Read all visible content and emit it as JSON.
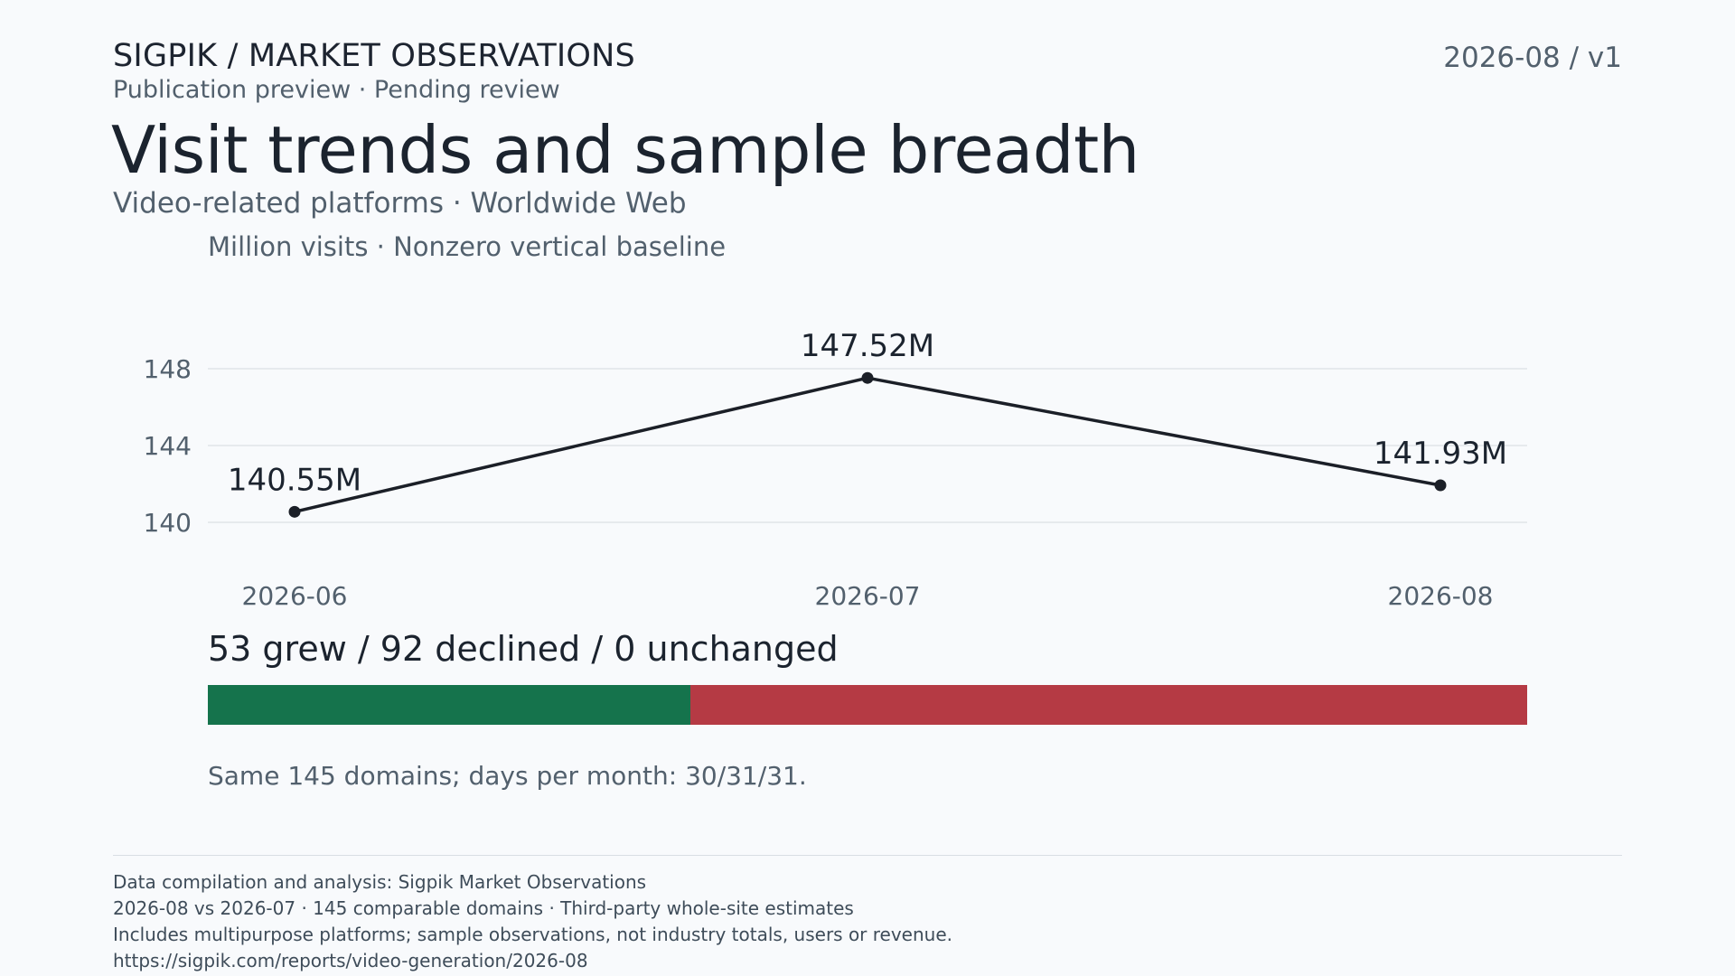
{
  "header": {
    "brand": "SIGPIK / MARKET OBSERVATIONS",
    "status": "Publication preview · Pending review",
    "edition": "2026-08 / v1"
  },
  "title": "Visit trends and sample breadth",
  "subtitle": "Video-related platforms · Worldwide Web",
  "unit_note": "Million visits · Nonzero vertical baseline",
  "chart_data": [
    {
      "type": "line",
      "x": [
        "2026-06",
        "2026-07",
        "2026-08"
      ],
      "series": [
        {
          "values": [
            140.55,
            147.52,
            141.93
          ]
        }
      ],
      "data_labels": [
        "140.55M",
        "147.52M",
        "141.93M"
      ],
      "yticks": [
        140,
        144,
        148
      ],
      "ylim": [
        138,
        150
      ],
      "ylabel": "Million visits",
      "grid": true,
      "line_color": "#1b1f27"
    },
    {
      "type": "bar",
      "orientation": "stacked-horizontal",
      "categories": [
        "grew",
        "declined",
        "unchanged"
      ],
      "values": [
        53,
        92,
        0
      ],
      "colors": [
        "#15734c",
        "#b53a44",
        "#9aa5b1"
      ]
    }
  ],
  "breadth": {
    "headline": "53 grew / 92 declined / 0 unchanged",
    "note": "Same 145 domains; days per month: 30/31/31."
  },
  "footer": {
    "lines": [
      "Data compilation and analysis: Sigpik Market Observations",
      "2026-08 vs 2026-07 · 145 comparable domains · Third-party whole-site estimates",
      "Includes multipurpose platforms; sample observations, not industry totals, users or revenue.",
      "https://sigpik.com/reports/video-generation/2026-08"
    ]
  }
}
